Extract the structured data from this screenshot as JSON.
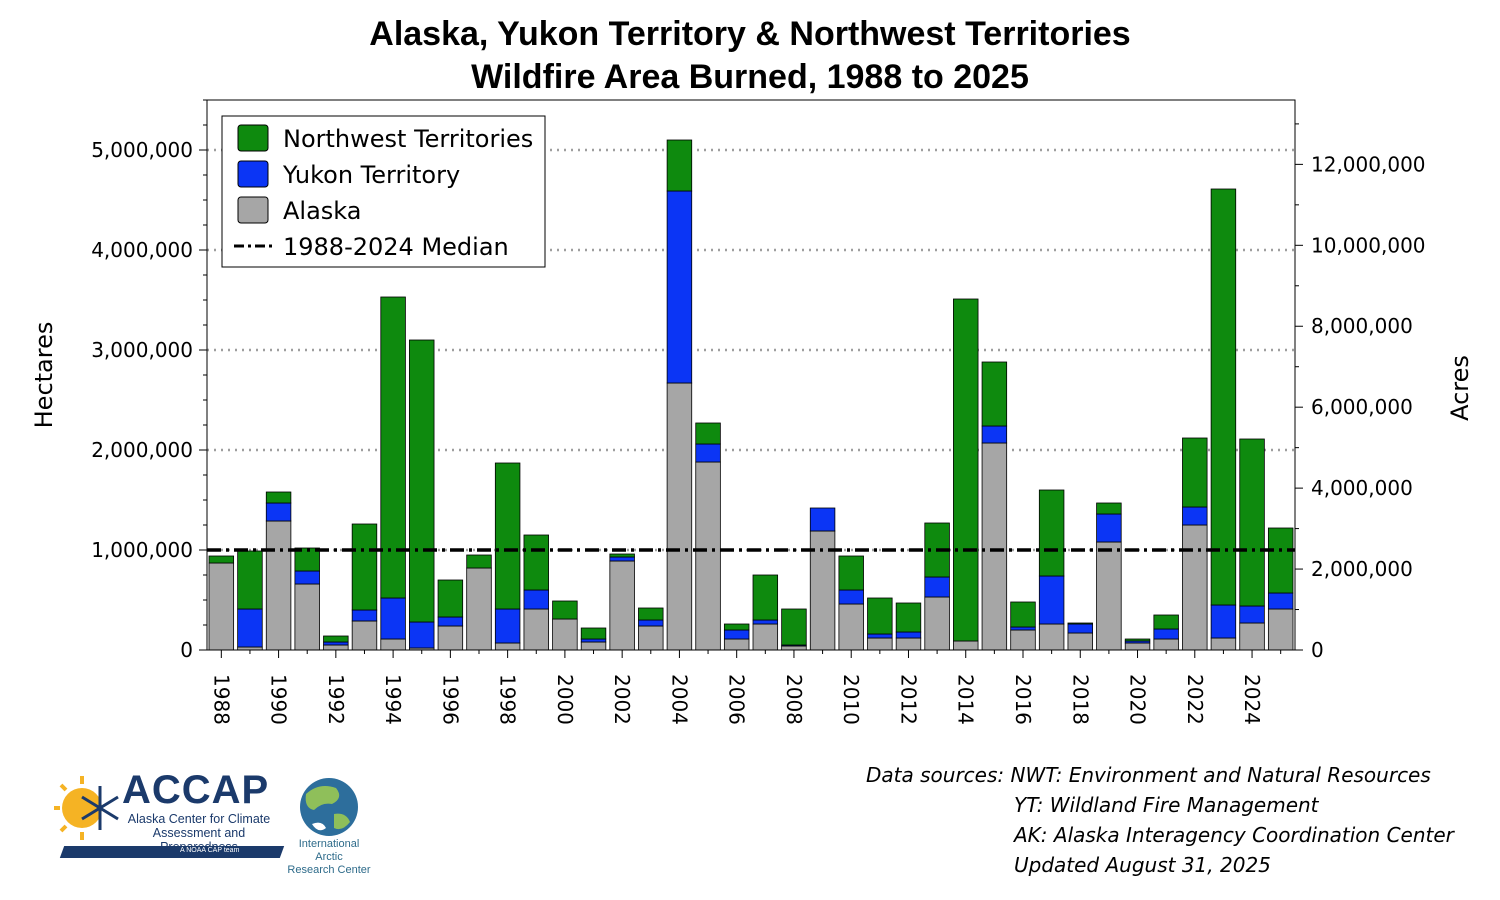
{
  "chart_data": {
    "type": "bar",
    "stacked": true,
    "title_lines": [
      "Alaska, Yukon Territory & Northwest Territories",
      "Wildfire Area Burned, 1988 to 2025"
    ],
    "ylabel_left": "Hectares",
    "ylabel_right": "Acres",
    "ylim": [
      0,
      5500000
    ],
    "yticks_left": [
      0,
      1000000,
      2000000,
      3000000,
      4000000,
      5000000
    ],
    "yticks_left_labels": [
      "0",
      "1,000,000",
      "2,000,000",
      "3,000,000",
      "4,000,000",
      "5,000,000"
    ],
    "yticks_right_acres": [
      0,
      2000000,
      4000000,
      6000000,
      8000000,
      10000000,
      12000000
    ],
    "yticks_right_labels": [
      "0",
      "2,000,000",
      "4,000,000",
      "6,000,000",
      "8,000,000",
      "10,000,000",
      "12,000,000"
    ],
    "acres_per_hectare": 2.471,
    "grid": "horizontal dotted at major left ticks",
    "legend_position": "top-left",
    "years": [
      1988,
      1989,
      1990,
      1991,
      1992,
      1993,
      1994,
      1995,
      1996,
      1997,
      1998,
      1999,
      2000,
      2001,
      2002,
      2003,
      2004,
      2005,
      2006,
      2007,
      2008,
      2009,
      2010,
      2011,
      2012,
      2013,
      2014,
      2015,
      2016,
      2017,
      2018,
      2019,
      2020,
      2021,
      2022,
      2023,
      2024,
      2025
    ],
    "xtick_labels": [
      "1988",
      "1990",
      "1992",
      "1994",
      "1996",
      "1998",
      "2000",
      "2002",
      "2004",
      "2006",
      "2008",
      "2010",
      "2012",
      "2014",
      "2016",
      "2018",
      "2020",
      "2022",
      "2024"
    ],
    "series": [
      {
        "name": "Alaska",
        "color": "#a6a6a6",
        "values": [
          870000,
          30000,
          1290000,
          660000,
          50000,
          290000,
          110000,
          20000,
          240000,
          820000,
          70000,
          410000,
          310000,
          80000,
          890000,
          240000,
          2670000,
          1880000,
          110000,
          260000,
          40000,
          1190000,
          460000,
          120000,
          120000,
          530000,
          90000,
          2070000,
          200000,
          260000,
          170000,
          1080000,
          70000,
          110000,
          1250000,
          120000,
          270000,
          410000
        ]
      },
      {
        "name": "Yukon Territory",
        "color": "#0b35f5",
        "values": [
          0,
          380000,
          180000,
          130000,
          30000,
          110000,
          410000,
          260000,
          90000,
          0,
          340000,
          190000,
          0,
          30000,
          40000,
          60000,
          1920000,
          180000,
          90000,
          40000,
          10000,
          230000,
          140000,
          40000,
          60000,
          200000,
          0,
          170000,
          30000,
          480000,
          90000,
          280000,
          20000,
          100000,
          180000,
          330000,
          170000,
          160000
        ]
      },
      {
        "name": "Northwest Territories",
        "color": "#0e8a0e",
        "values": [
          70000,
          580000,
          110000,
          230000,
          60000,
          860000,
          3010000,
          2820000,
          370000,
          130000,
          1460000,
          550000,
          180000,
          110000,
          30000,
          120000,
          510000,
          210000,
          60000,
          450000,
          360000,
          0,
          340000,
          360000,
          290000,
          540000,
          3420000,
          640000,
          250000,
          860000,
          10000,
          110000,
          20000,
          140000,
          690000,
          4160000,
          1670000,
          650000
        ]
      }
    ],
    "median": {
      "name": "1988-2024 Median",
      "value": 1000000,
      "style": "dash-dot",
      "color": "#000000"
    },
    "legend_order": [
      "Northwest Territories",
      "Yukon Territory",
      "Alaska",
      "1988-2024 Median"
    ]
  },
  "credits": {
    "line1": "Data sources: NWT: Environment and Natural Resources",
    "line2": "YT: Wildland Fire Management",
    "line3": "AK: Alaska Interagency Coordination Center",
    "line4": "Updated August 31, 2025"
  },
  "logos": {
    "accap_name": "ACCAP",
    "accap_line1": "Alaska Center for Climate",
    "accap_line2": "Assessment and Preparedness",
    "accap_noaa": "A NOAA CAP team",
    "iarc_line1": "International Arctic",
    "iarc_line2": "Research Center"
  }
}
